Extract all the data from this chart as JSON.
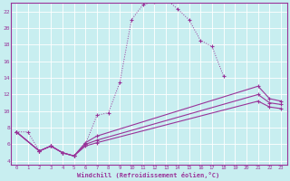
{
  "xlabel": "Windchill (Refroidissement éolien,°C)",
  "background_color": "#c8eef0",
  "grid_color": "#ffffff",
  "line_color": "#993399",
  "xlim": [
    -0.5,
    23.5
  ],
  "ylim": [
    3.5,
    23.0
  ],
  "xticks": [
    0,
    1,
    2,
    3,
    4,
    5,
    6,
    7,
    8,
    9,
    10,
    11,
    12,
    13,
    14,
    15,
    16,
    17,
    18,
    19,
    20,
    21,
    22,
    23
  ],
  "yticks": [
    4,
    6,
    8,
    10,
    12,
    14,
    16,
    18,
    20,
    22
  ],
  "series": [
    {
      "x": [
        0,
        1,
        2,
        3,
        4,
        5,
        6,
        7,
        8,
        9,
        10,
        11,
        12,
        13,
        14,
        15,
        16,
        17,
        18
      ],
      "y": [
        7.5,
        7.5,
        5.2,
        5.8,
        5.0,
        4.6,
        6.0,
        9.5,
        9.8,
        13.5,
        21.0,
        22.8,
        23.2,
        23.5,
        22.3,
        21.0,
        18.5,
        17.8,
        14.2
      ]
    },
    {
      "x": [
        0,
        2,
        3,
        4,
        5,
        6,
        7,
        21,
        22,
        23
      ],
      "y": [
        7.5,
        5.2,
        5.8,
        5.0,
        4.6,
        6.2,
        7.0,
        13.0,
        11.5,
        11.2
      ]
    },
    {
      "x": [
        0,
        2,
        3,
        4,
        5,
        6,
        7,
        21,
        22,
        23
      ],
      "y": [
        7.5,
        5.2,
        5.8,
        5.0,
        4.6,
        6.0,
        6.5,
        12.0,
        11.0,
        10.8
      ]
    },
    {
      "x": [
        0,
        2,
        3,
        4,
        5,
        6,
        7,
        21,
        22,
        23
      ],
      "y": [
        7.5,
        5.2,
        5.8,
        5.0,
        4.6,
        5.8,
        6.2,
        11.2,
        10.5,
        10.3
      ]
    }
  ]
}
